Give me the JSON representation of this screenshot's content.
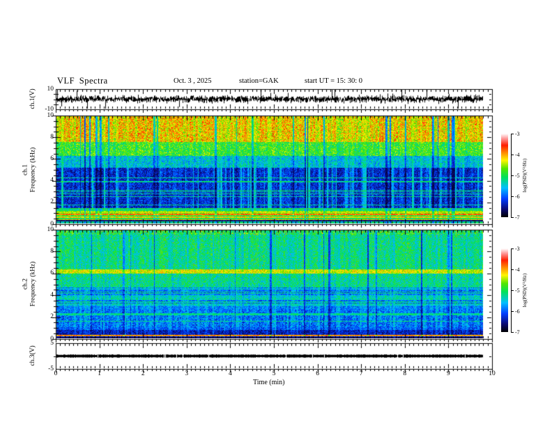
{
  "header": {
    "title": "VLF Spectra",
    "date": "Oct. 3 , 2025",
    "station": "station=GAK",
    "start_ut": "start UT =  15: 30: 0"
  },
  "x_axis": {
    "label": "Time  (min)",
    "tick_labels": [
      "0",
      "1",
      "2",
      "3",
      "4",
      "5",
      "6",
      "7",
      "8",
      "9",
      "10"
    ],
    "range_min": [
      0,
      10
    ],
    "data_end_min": 9.8
  },
  "panels": {
    "ch1_wave": {
      "ylabel": "ch.1(V)",
      "ytick_labels": [
        "10",
        "-10"
      ],
      "ylim": [
        -10,
        10
      ]
    },
    "ch1_spec": {
      "ylabel_lines": [
        "ch.1",
        "Frequency  (kHz)"
      ],
      "ytick_labels": [
        "10",
        "8",
        "6",
        "4",
        "2",
        "0"
      ],
      "ylim_khz": [
        0,
        10
      ]
    },
    "ch2_spec": {
      "ylabel_lines": [
        "ch.2",
        "Frequency  (kHz)"
      ],
      "ytick_labels": [
        "10",
        "8",
        "6",
        "4",
        "2",
        "0"
      ],
      "ylim_khz": [
        0,
        10
      ]
    },
    "ch3_wave": {
      "ylabel": "ch.3(V)",
      "ytick_labels": [
        "5",
        "-5"
      ],
      "ylim": [
        -5,
        5
      ]
    }
  },
  "colorbars": [
    {
      "label": "log(PSD)(V²/Hz)",
      "tick_labels": [
        "-3",
        "-4",
        "-5",
        "-6",
        "-7"
      ],
      "range": [
        -7,
        -3
      ]
    },
    {
      "label": "log(PSD)(V²/Hz)",
      "tick_labels": [
        "-3",
        "-4",
        "-5",
        "-6",
        "-7"
      ],
      "range": [
        -7,
        -3
      ]
    }
  ],
  "colors": {
    "background": "#ffffff",
    "axis": "#000000",
    "trace": "#000000",
    "colormap_stops": [
      [
        0.0,
        "#000000"
      ],
      [
        0.1,
        "#0a0a78"
      ],
      [
        0.22,
        "#003cff"
      ],
      [
        0.35,
        "#00beff"
      ],
      [
        0.48,
        "#00e15a"
      ],
      [
        0.58,
        "#50e600"
      ],
      [
        0.68,
        "#fff500"
      ],
      [
        0.77,
        "#ff8c00"
      ],
      [
        0.86,
        "#ff1e00"
      ],
      [
        0.94,
        "#ff9696"
      ],
      [
        1.0,
        "#ffffff"
      ]
    ]
  },
  "chart_data": [
    {
      "type": "line",
      "id": "ch1_wave",
      "title": "ch.1 voltage waveform",
      "ylabel": "ch.1(V)",
      "ylim": [
        -10,
        10
      ],
      "x_range_min": [
        0,
        9.8
      ],
      "baseline_v": 0,
      "noise_band_v": 1.8,
      "spike_v_range": [
        2.5,
        9.5
      ],
      "spike_probability": 0.04,
      "color": "#000000"
    },
    {
      "type": "heatmap",
      "id": "ch1_spec",
      "title": "ch.1 VLF spectrogram",
      "ylabel": "ch.1 Frequency (kHz)",
      "ylim_khz": [
        0,
        10
      ],
      "psd_range": [
        -7,
        -3
      ],
      "x_range_min": [
        0,
        9.8
      ],
      "bands": [
        {
          "khz": [
            0.0,
            0.2
          ],
          "style": "speckle",
          "psd_mean": -5.3,
          "psd_var": 0.6,
          "streak_sense": 0.2
        },
        {
          "khz": [
            0.2,
            0.35
          ],
          "style": "speckle",
          "psd_mean": -6.6,
          "psd_var": 0.3,
          "streak_sense": 0.0
        },
        {
          "khz": [
            0.35,
            0.75
          ],
          "style": "hstripe",
          "rows_psd": [
            -5.0,
            -4.4,
            -4.7,
            -4.1,
            -5.2
          ],
          "psd_var": 0.4,
          "streak_sense": 0.1
        },
        {
          "khz": [
            0.75,
            0.9
          ],
          "style": "hstripe",
          "rows_psd": [
            -3.7,
            -3.9
          ],
          "psd_var": 0.3,
          "streak_sense": 0.1
        },
        {
          "khz": [
            0.9,
            1.15
          ],
          "style": "hstripe",
          "rows_psd": [
            -4.3,
            -4.6,
            -4.0
          ],
          "psd_var": 0.4,
          "streak_sense": 0.1
        },
        {
          "khz": [
            1.15,
            1.45
          ],
          "style": "hstripe",
          "rows_psd": [
            -5.0,
            -5.3
          ],
          "psd_var": 0.4,
          "streak_sense": 0.2
        },
        {
          "khz": [
            1.45,
            5.2
          ],
          "style": "speckle",
          "psd_mean": -6.3,
          "psd_var": 0.45,
          "streak_sense": 0.65,
          "hlines": {
            "count": 8,
            "psd": -5.2
          }
        },
        {
          "khz": [
            5.2,
            6.3
          ],
          "style": "speckle",
          "psd_mean": -5.5,
          "psd_var": 0.5,
          "streak_sense": 0.4
        },
        {
          "khz": [
            6.3,
            7.6
          ],
          "style": "speckle",
          "psd_mean": -4.8,
          "psd_var": 0.55,
          "streak_sense": 0.35
        },
        {
          "khz": [
            7.6,
            10.01
          ],
          "style": "speckle",
          "psd_mean": -4.05,
          "psd_var": 0.6,
          "streak_sense": 0.55
        }
      ],
      "streak_target_psd": -4.8
    },
    {
      "type": "heatmap",
      "id": "ch2_spec",
      "title": "ch.2 VLF spectrogram",
      "ylabel": "ch.2 Frequency (kHz)",
      "ylim_khz": [
        0,
        10
      ],
      "psd_range": [
        -7,
        -3
      ],
      "x_range_min": [
        0,
        9.8
      ],
      "bands": [
        {
          "khz": [
            0.0,
            0.15
          ],
          "style": "speckle",
          "psd_mean": -6.7,
          "psd_var": 0.3,
          "streak_sense": 0.1
        },
        {
          "khz": [
            0.15,
            0.3
          ],
          "style": "hstripe",
          "rows_psd": [
            -3.9,
            -6.5,
            -4.2,
            -6.2
          ],
          "psd_var": 0.3,
          "streak_sense": 0.05
        },
        {
          "khz": [
            0.3,
            0.75
          ],
          "style": "speckle",
          "psd_mean": -6.4,
          "psd_var": 0.4,
          "streak_sense": 0.25
        },
        {
          "khz": [
            0.75,
            1.0
          ],
          "style": "speckle",
          "psd_mean": -6.0,
          "psd_var": 0.4,
          "streak_sense": 0.3
        },
        {
          "khz": [
            1.0,
            2.6
          ],
          "style": "speckle",
          "psd_mean": -5.9,
          "psd_var": 0.5,
          "streak_sense": 0.4,
          "hlines": {
            "count": 4,
            "psd": -5.2
          }
        },
        {
          "khz": [
            2.6,
            4.8
          ],
          "style": "hstripe",
          "rows_psd": [
            -5.9,
            -5.5,
            -5.2,
            -5.7,
            -6.0,
            -5.4
          ],
          "psd_var": 0.4,
          "streak_sense": 0.35
        },
        {
          "khz": [
            4.8,
            6.0
          ],
          "style": "speckle",
          "psd_mean": -5.2,
          "psd_var": 0.5,
          "streak_sense": 0.35
        },
        {
          "khz": [
            6.0,
            6.4
          ],
          "style": "speckle",
          "psd_mean": -4.3,
          "psd_var": 0.4,
          "streak_sense": 0.15
        },
        {
          "khz": [
            6.4,
            9.6
          ],
          "style": "speckle",
          "psd_mean": -5.05,
          "psd_var": 0.5,
          "streak_sense": 0.5,
          "streak_target_psd": -6.0,
          "red_speck": 0.003
        },
        {
          "khz": [
            9.6,
            10.01
          ],
          "style": "speckle",
          "psd_mean": -4.9,
          "psd_var": 0.6,
          "streak_sense": 0.4,
          "streak_target_psd": -6.0,
          "red_speck": 0.02
        }
      ],
      "streak_target_psd": -5.0
    },
    {
      "type": "line",
      "id": "ch3_wave",
      "title": "ch.3 voltage waveform",
      "ylabel": "ch.3(V)",
      "ylim": [
        -5,
        5
      ],
      "x_range_min": [
        0,
        9.8
      ],
      "constant_v": 0,
      "trace_thickness_v": 1.0,
      "color": "#000000"
    }
  ]
}
